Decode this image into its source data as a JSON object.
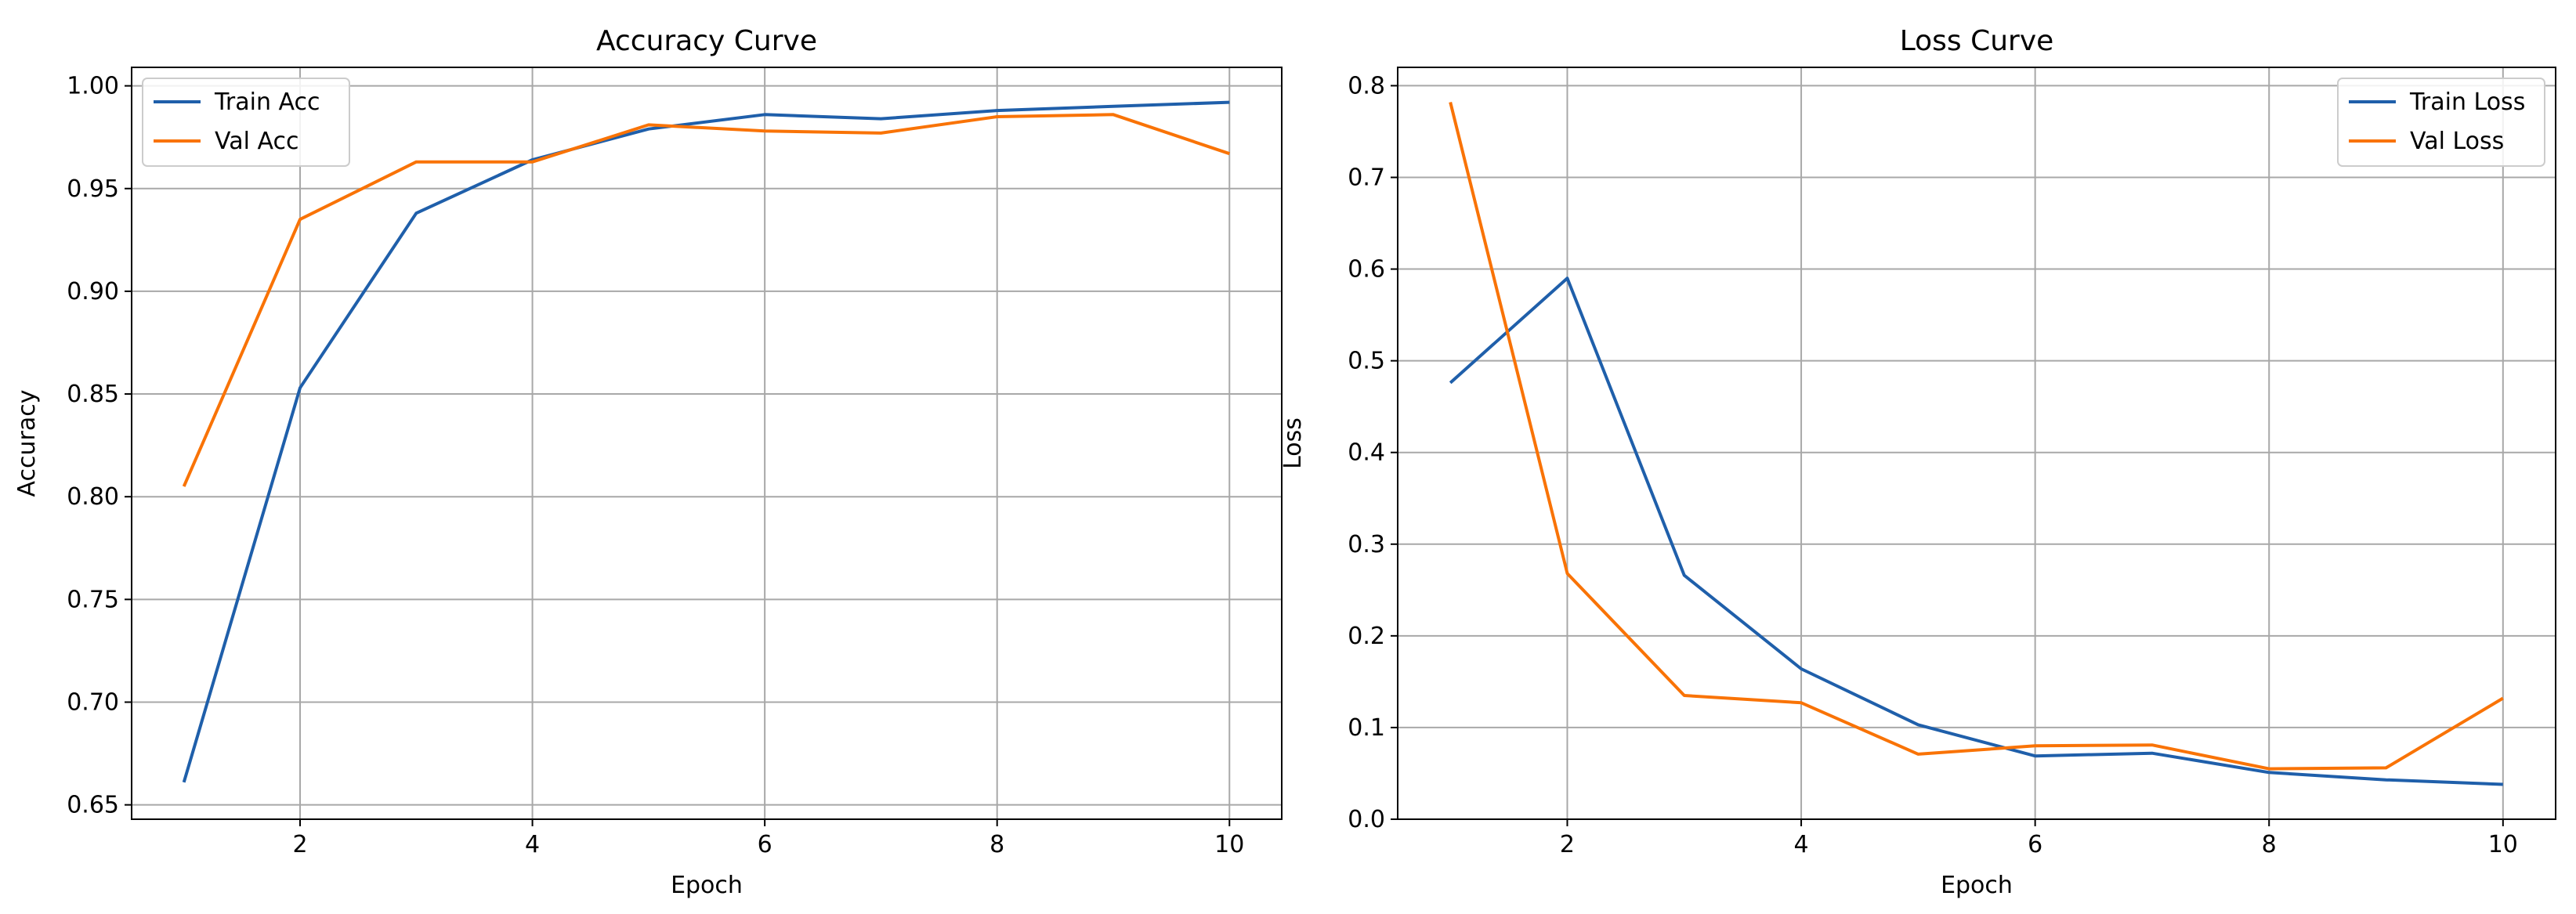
{
  "chart_data": [
    {
      "type": "line",
      "title": "Accuracy Curve",
      "xlabel": "Epoch",
      "ylabel": "Accuracy",
      "x": [
        1,
        2,
        3,
        4,
        5,
        6,
        7,
        8,
        9,
        10
      ],
      "xlim": [
        0.55,
        10.45
      ],
      "ylim": [
        0.643,
        1.009
      ],
      "xticks": [
        2,
        4,
        6,
        8,
        10
      ],
      "yticks": [
        0.65,
        0.7,
        0.75,
        0.8,
        0.85,
        0.9,
        0.95,
        1.0
      ],
      "ytick_labels": [
        "0.65",
        "0.70",
        "0.75",
        "0.80",
        "0.85",
        "0.90",
        "0.95",
        "1.00"
      ],
      "grid": true,
      "legend_position": "upper-left",
      "series": [
        {
          "name": "Train Acc",
          "color": "#1f5faa",
          "values": [
            0.661,
            0.853,
            0.938,
            0.964,
            0.979,
            0.986,
            0.984,
            0.988,
            0.99,
            0.992
          ]
        },
        {
          "name": "Val Acc",
          "color": "#f97306",
          "values": [
            0.805,
            0.935,
            0.963,
            0.963,
            0.981,
            0.978,
            0.977,
            0.985,
            0.986,
            0.967
          ]
        }
      ]
    },
    {
      "type": "line",
      "title": "Loss Curve",
      "xlabel": "Epoch",
      "ylabel": "Loss",
      "x": [
        1,
        2,
        3,
        4,
        5,
        6,
        7,
        8,
        9,
        10
      ],
      "xlim": [
        0.55,
        10.45
      ],
      "ylim": [
        0.0,
        0.82
      ],
      "xticks": [
        2,
        4,
        6,
        8,
        10
      ],
      "yticks": [
        0.0,
        0.1,
        0.2,
        0.3,
        0.4,
        0.5,
        0.6,
        0.7,
        0.8
      ],
      "ytick_labels": [
        "0.0",
        "0.1",
        "0.2",
        "0.3",
        "0.4",
        "0.5",
        "0.6",
        "0.7",
        "0.8"
      ],
      "grid": true,
      "legend_position": "upper-right",
      "series": [
        {
          "name": "Train Loss",
          "color": "#1f5faa",
          "values": [
            0.476,
            0.59,
            0.266,
            0.164,
            0.103,
            0.069,
            0.072,
            0.051,
            0.043,
            0.038
          ]
        },
        {
          "name": "Val Loss",
          "color": "#f97306",
          "values": [
            0.782,
            0.268,
            0.135,
            0.127,
            0.071,
            0.08,
            0.081,
            0.055,
            0.056,
            0.132
          ]
        }
      ]
    }
  ]
}
